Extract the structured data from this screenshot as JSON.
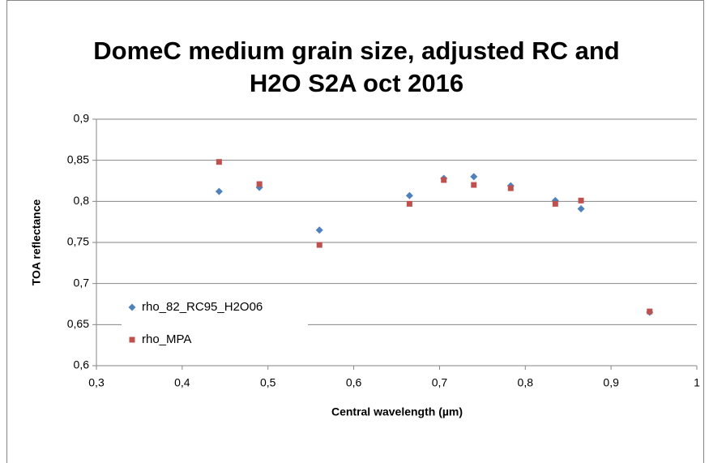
{
  "chart_data": {
    "type": "scatter",
    "title": [
      "DomeC medium grain size, adjusted RC and",
      "H2O S2A oct 2016"
    ],
    "xlabel": "Central wavelength (µm)",
    "ylabel": "TOA reflectance",
    "xlim": [
      0.3,
      1
    ],
    "xticks": [
      {
        "value": 0.3,
        "label": "0,3"
      },
      {
        "value": 0.4,
        "label": "0,4"
      },
      {
        "value": 0.5,
        "label": "0,5"
      },
      {
        "value": 0.6,
        "label": "0,6"
      },
      {
        "value": 0.7,
        "label": "0,7"
      },
      {
        "value": 0.8,
        "label": "0,8"
      },
      {
        "value": 0.9,
        "label": "0,9"
      },
      1
    ],
    "ylim": [
      0.6,
      0.9
    ],
    "yticks": [
      {
        "value": 0.6,
        "label": "0,6"
      },
      {
        "value": 0.65,
        "label": "0,65"
      },
      {
        "value": 0.7,
        "label": "0,7"
      },
      {
        "value": 0.75,
        "label": "0,75"
      },
      {
        "value": 0.8,
        "label": "0,8"
      },
      {
        "value": 0.85,
        "label": "0,85"
      },
      {
        "value": 0.9,
        "label": "0,9"
      }
    ],
    "grid": true,
    "legend": "left",
    "series": [
      {
        "name": "rho_82_RC95_H2O06",
        "color": "#4f81bd",
        "marker": "diamond",
        "x": [
          0.443,
          0.49,
          0.56,
          0.665,
          0.705,
          0.74,
          0.783,
          0.835,
          0.865,
          0.945
        ],
        "values": [
          0.812,
          0.817,
          0.765,
          0.807,
          0.828,
          0.83,
          0.819,
          0.801,
          0.791,
          0.665
        ]
      },
      {
        "name": "rho_MPA",
        "color": "#c0504d",
        "marker": "square",
        "x": [
          0.443,
          0.49,
          0.56,
          0.665,
          0.705,
          0.74,
          0.783,
          0.835,
          0.865,
          0.945
        ],
        "values": [
          0.848,
          0.821,
          0.747,
          0.797,
          0.826,
          0.82,
          0.816,
          0.797,
          0.801,
          0.666
        ]
      }
    ]
  }
}
